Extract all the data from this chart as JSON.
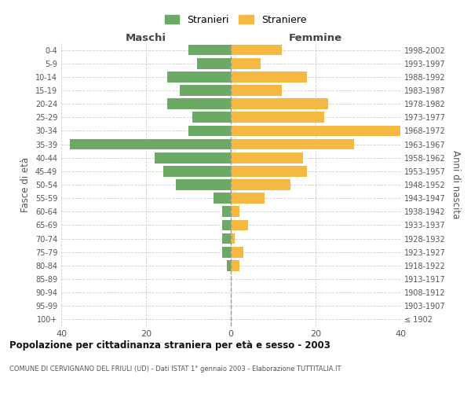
{
  "age_groups": [
    "100+",
    "95-99",
    "90-94",
    "85-89",
    "80-84",
    "75-79",
    "70-74",
    "65-69",
    "60-64",
    "55-59",
    "50-54",
    "45-49",
    "40-44",
    "35-39",
    "30-34",
    "25-29",
    "20-24",
    "15-19",
    "10-14",
    "5-9",
    "0-4"
  ],
  "birth_years": [
    "≤ 1902",
    "1903-1907",
    "1908-1912",
    "1913-1917",
    "1918-1922",
    "1923-1927",
    "1928-1932",
    "1933-1937",
    "1938-1942",
    "1943-1947",
    "1948-1952",
    "1953-1957",
    "1958-1962",
    "1963-1967",
    "1968-1972",
    "1973-1977",
    "1978-1982",
    "1983-1987",
    "1988-1992",
    "1993-1997",
    "1998-2002"
  ],
  "males": [
    0,
    0,
    0,
    0,
    1,
    2,
    2,
    2,
    2,
    4,
    13,
    16,
    18,
    38,
    10,
    9,
    15,
    12,
    15,
    8,
    10
  ],
  "females": [
    0,
    0,
    0,
    0,
    2,
    3,
    1,
    4,
    2,
    8,
    14,
    18,
    17,
    29,
    40,
    22,
    23,
    12,
    18,
    7,
    12
  ],
  "male_color": "#6aaa64",
  "female_color": "#f5b942",
  "background_color": "#ffffff",
  "grid_color": "#cccccc",
  "title": "Popolazione per cittadinanza straniera per età e sesso - 2003",
  "subtitle": "COMUNE DI CERVIGNANO DEL FRIULI (UD) - Dati ISTAT 1° gennaio 2003 - Elaborazione TUTTITALIA.IT",
  "xlabel_left": "Maschi",
  "xlabel_right": "Femmine",
  "ylabel_left": "Fasce di età",
  "ylabel_right": "Anni di nascita",
  "legend_male": "Stranieri",
  "legend_female": "Straniere",
  "xlim": 40,
  "bar_height": 0.8
}
